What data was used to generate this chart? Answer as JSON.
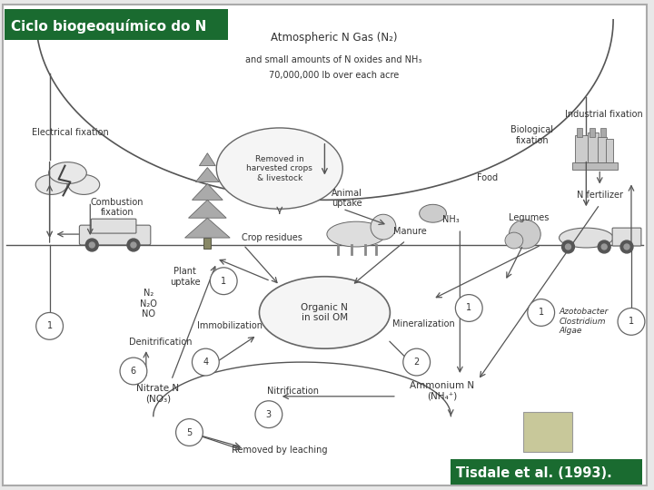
{
  "title_banner": "Ciclo biogeoquímico do N",
  "citation_banner": "Tisdale et al. (1993).",
  "green_color": "#1a6b30",
  "swatch_color": "#c8c89a",
  "bg_color": "#ffffff",
  "fig_bg": "#e8e8e8",
  "line_color": "#555555",
  "text_color": "#333333",
  "light_text": "#555577",
  "atm_text": "Atmospheric N Gas (N₂)",
  "atm_sub1": "and small amounts of N oxides and NH₃",
  "atm_sub2": "70,000,000 lb over each acre",
  "electrical": "Electrical fixation",
  "combustion": "Combustion\nfixation",
  "industrial": "Industrial fixation",
  "biological": "Biological\nfixation",
  "removed": "Removed in\nharvested crops\n& livestock",
  "food": "Food",
  "legumes": "Legumes",
  "nfert": "N fertilizer",
  "animal": "Animal\nuptake",
  "crop_res": "Crop residues",
  "manure": "Manure",
  "nh3": "NH₃",
  "organic": "Organic N\nin soil OM",
  "plant": "Plant\nuptake",
  "n2o": "N₂\nN₂O\nNO",
  "denit": "Denitrification",
  "immob": "Immobilization",
  "mineral": "Mineralization",
  "nitrate": "Nitrate N\n(NO₃)",
  "ammonium": "Ammonium N\n(NH₄⁺)",
  "nitrif": "Nitrification",
  "leaching": "Removed by leaching",
  "azoto": "Azotobacter\nClostridium\nAlgae",
  "fs": 7.0
}
